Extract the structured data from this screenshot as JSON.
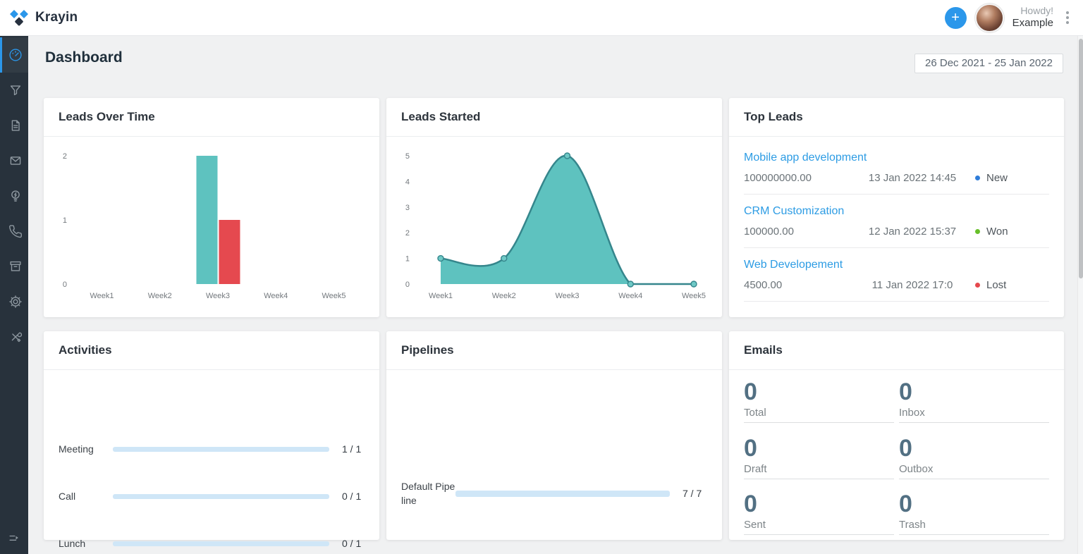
{
  "app": {
    "brand": "Krayin"
  },
  "header": {
    "create_label": "+",
    "greeting_line1": "Howdy!",
    "greeting_line2": "Example"
  },
  "sidebar": {
    "items": [
      {
        "icon": "speedometer",
        "active": true
      },
      {
        "icon": "funnel",
        "active": false
      },
      {
        "icon": "file-document",
        "active": false
      },
      {
        "icon": "envelope",
        "active": false
      },
      {
        "icon": "lightbulb",
        "active": false
      },
      {
        "icon": "phone",
        "active": false
      },
      {
        "icon": "archive-box",
        "active": false
      },
      {
        "icon": "gear",
        "active": false
      },
      {
        "icon": "tools",
        "active": false
      }
    ],
    "collapse_icon": "collapse-expand"
  },
  "page": {
    "title": "Dashboard",
    "date_range": "26 Dec 2021 - 25 Jan 2022"
  },
  "cards": {
    "leads_over_time": {
      "title": "Leads Over Time"
    },
    "leads_started": {
      "title": "Leads Started"
    },
    "top_leads": {
      "title": "Top Leads",
      "items": [
        {
          "title": "Mobile app development",
          "value": "100000000.00",
          "date": "13 Jan 2022 14:45",
          "status": "New",
          "status_color": "#2f7dd9"
        },
        {
          "title": "CRM Customization",
          "value": "100000.00",
          "date": "12 Jan 2022 15:37",
          "status": "Won",
          "status_color": "#67bf29"
        },
        {
          "title": "Web Developement",
          "value": "4500.00",
          "date": "11 Jan 2022 17:0",
          "status": "Lost",
          "status_color": "#e5484d"
        }
      ]
    },
    "activities": {
      "title": "Activities",
      "items": [
        {
          "label": "Meeting",
          "value": "1 / 1",
          "percent": 100
        },
        {
          "label": "Call",
          "value": "0 / 1",
          "percent": 0
        },
        {
          "label": "Lunch",
          "value": "0 / 1",
          "percent": 0
        }
      ]
    },
    "pipelines": {
      "title": "Pipelines",
      "items": [
        {
          "label": "Default Pipeline",
          "value": "7 / 7",
          "percent": 100
        }
      ]
    },
    "emails": {
      "title": "Emails",
      "stats": [
        {
          "label": "Total",
          "value": "0"
        },
        {
          "label": "Inbox",
          "value": "0"
        },
        {
          "label": "Draft",
          "value": "0"
        },
        {
          "label": "Outbox",
          "value": "0"
        },
        {
          "label": "Sent",
          "value": "0"
        },
        {
          "label": "Trash",
          "value": "0"
        }
      ]
    }
  },
  "chart_data": [
    {
      "type": "bar",
      "title": "Leads Over Time",
      "categories": [
        "Week1",
        "Week2",
        "Week3",
        "Week4",
        "Week5"
      ],
      "series": [
        {
          "name": "leads-teal",
          "color": "#5ec2bf",
          "values": [
            0,
            0,
            2,
            0,
            0
          ]
        },
        {
          "name": "leads-red",
          "color": "#e5494f",
          "values": [
            0,
            0,
            1,
            0,
            0
          ]
        }
      ],
      "xlabel": "",
      "ylabel": "",
      "ylim": [
        0,
        2
      ],
      "yticks": [
        0,
        1,
        2
      ],
      "grid": false,
      "legend": "none"
    },
    {
      "type": "area",
      "title": "Leads Started",
      "categories": [
        "Week1",
        "Week2",
        "Week3",
        "Week4",
        "Week5"
      ],
      "values": [
        1,
        1,
        5,
        0,
        0
      ],
      "line_color": "#35868c",
      "fill_color": "#5ec2bf",
      "marker_fill": "#6fc9c6",
      "xlabel": "",
      "ylabel": "",
      "ylim": [
        0,
        5
      ],
      "yticks": [
        0,
        1,
        2,
        3,
        4,
        5
      ],
      "grid": false,
      "legend": "none"
    }
  ],
  "colors": {
    "accent_blue": "#2b97ea",
    "link_blue": "#2d9ce4",
    "progress_blue": "#2e86d3",
    "progress_track": "#cfe6f7",
    "email_stat": "#527083",
    "teal": "#5ec2bf",
    "teal_dark": "#35868c",
    "red": "#e5494f",
    "status_new": "#2f7dd9",
    "status_won": "#67bf29",
    "status_lost": "#e5484d"
  }
}
